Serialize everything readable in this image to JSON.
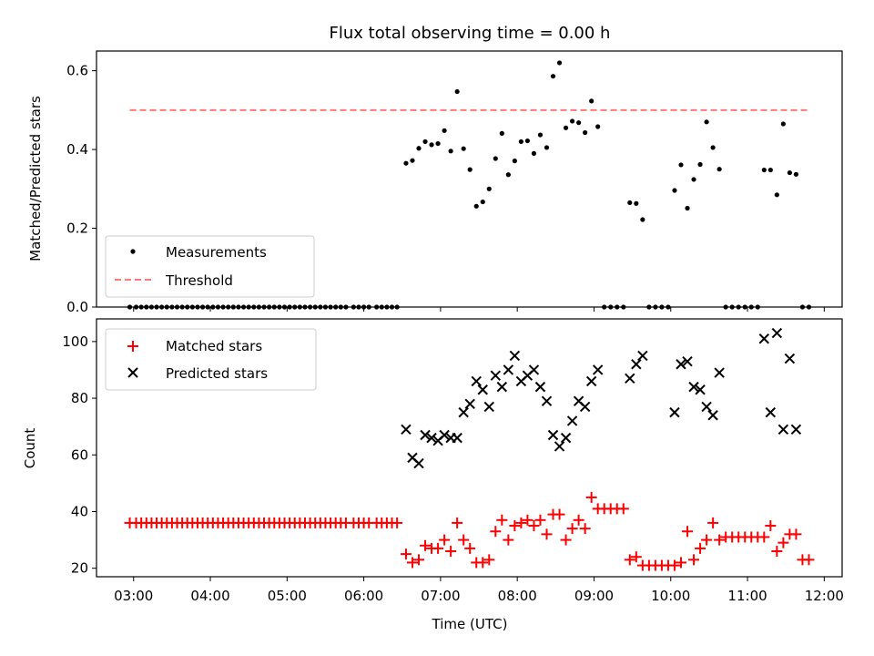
{
  "chart_data": [
    {
      "type": "scatter",
      "title": "Flux total observing time = 0.00 h",
      "ylabel": "Matched/Predicted stars",
      "xlim": [
        "02:31",
        "12:14"
      ],
      "ylim": [
        0,
        0.65
      ],
      "yticks": [
        0.0,
        0.2,
        0.4,
        0.6
      ],
      "ytick_labels": [
        "0.0",
        "0.2",
        "0.4",
        "0.6"
      ],
      "xticks": [
        "03:00",
        "04:00",
        "05:00",
        "06:00",
        "07:00",
        "08:00",
        "09:00",
        "10:00",
        "11:00",
        "12:00"
      ],
      "legend": {
        "position": "lower left",
        "entries": [
          "Measurements",
          "Threshold"
        ]
      },
      "grid": false,
      "series": [
        {
          "name": "Measurements",
          "marker": "dot",
          "color": "#000000",
          "x": [
            "02:57",
            "03:02",
            "03:06",
            "03:10",
            "03:14",
            "03:18",
            "03:22",
            "03:26",
            "03:30",
            "03:34",
            "03:38",
            "03:42",
            "03:46",
            "03:50",
            "03:54",
            "03:58",
            "04:02",
            "04:06",
            "04:10",
            "04:14",
            "04:18",
            "04:22",
            "04:26",
            "04:30",
            "04:34",
            "04:38",
            "04:42",
            "04:46",
            "04:50",
            "04:54",
            "04:58",
            "05:02",
            "05:06",
            "05:10",
            "05:14",
            "05:18",
            "05:22",
            "05:26",
            "05:30",
            "05:34",
            "05:38",
            "05:42",
            "05:46",
            "05:52",
            "05:56",
            "06:00",
            "06:04",
            "06:10",
            "06:14",
            "06:18",
            "06:22",
            "06:26",
            "06:33",
            "06:38",
            "06:43",
            "06:48",
            "06:53",
            "06:58",
            "07:03",
            "07:08",
            "07:13",
            "07:18",
            "07:23",
            "07:28",
            "07:33",
            "07:38",
            "07:43",
            "07:48",
            "07:53",
            "07:58",
            "08:03",
            "08:08",
            "08:13",
            "08:18",
            "08:23",
            "08:28",
            "08:33",
            "08:38",
            "08:43",
            "08:48",
            "08:53",
            "08:58",
            "09:03",
            "09:08",
            "09:13",
            "09:18",
            "09:23",
            "09:28",
            "09:33",
            "09:38",
            "09:43",
            "09:48",
            "09:53",
            "09:58",
            "10:03",
            "10:08",
            "10:13",
            "10:18",
            "10:23",
            "10:28",
            "10:33",
            "10:38",
            "10:43",
            "10:48",
            "10:53",
            "10:58",
            "11:03",
            "11:08",
            "11:13",
            "11:18",
            "11:23",
            "11:28",
            "11:33",
            "11:38",
            "11:43",
            "11:48"
          ],
          "y": [
            0,
            0,
            0,
            0,
            0,
            0,
            0,
            0,
            0,
            0,
            0,
            0,
            0,
            0,
            0,
            0,
            0,
            0,
            0,
            0,
            0,
            0,
            0,
            0,
            0,
            0,
            0,
            0,
            0,
            0,
            0,
            0,
            0,
            0,
            0,
            0,
            0,
            0,
            0,
            0,
            0,
            0,
            0,
            0,
            0,
            0,
            0,
            0,
            0,
            0,
            0,
            0,
            0.365,
            0.372,
            0.403,
            0.42,
            0.412,
            0.415,
            0.448,
            0.396,
            0.547,
            0.402,
            0.349,
            0.256,
            0.267,
            0.3,
            0.377,
            0.441,
            0.336,
            0.371,
            0.42,
            0.422,
            0.39,
            0.437,
            0.405,
            0.586,
            0.62,
            0.455,
            0.472,
            0.468,
            0.443,
            0.523,
            0.458,
            0,
            0,
            0,
            0,
            0.265,
            0.263,
            0.222,
            0,
            0,
            0,
            0,
            0.296,
            0.361,
            0.251,
            0.324,
            0.362,
            0.47,
            0.405,
            0.35,
            0,
            0,
            0,
            0,
            0,
            0,
            0.348,
            0.348,
            0.285,
            0.465,
            0.341,
            0.337,
            0,
            0
          ]
        },
        {
          "name": "Threshold",
          "style": "dashed",
          "color": "#ff7777",
          "x": [
            "02:57",
            "11:48"
          ],
          "y": [
            0.5,
            0.5
          ]
        }
      ]
    },
    {
      "type": "scatter",
      "xlabel": "Time (UTC)",
      "ylabel": "Count",
      "xlim": [
        "02:31",
        "12:14"
      ],
      "ylim": [
        17,
        108
      ],
      "yticks": [
        20,
        40,
        60,
        80,
        100
      ],
      "ytick_labels": [
        "20",
        "40",
        "60",
        "80",
        "100"
      ],
      "xticks": [
        "03:00",
        "04:00",
        "05:00",
        "06:00",
        "07:00",
        "08:00",
        "09:00",
        "10:00",
        "11:00",
        "12:00"
      ],
      "legend": {
        "position": "upper left",
        "entries": [
          "Matched stars",
          "Predicted stars"
        ]
      },
      "grid": false,
      "series": [
        {
          "name": "Matched stars",
          "marker": "plus",
          "color": "#ff0000",
          "x": [
            "02:57",
            "03:02",
            "03:06",
            "03:10",
            "03:14",
            "03:18",
            "03:22",
            "03:26",
            "03:30",
            "03:34",
            "03:38",
            "03:42",
            "03:46",
            "03:50",
            "03:54",
            "03:58",
            "04:02",
            "04:06",
            "04:10",
            "04:14",
            "04:18",
            "04:22",
            "04:26",
            "04:30",
            "04:34",
            "04:38",
            "04:42",
            "04:46",
            "04:50",
            "04:54",
            "04:58",
            "05:02",
            "05:06",
            "05:10",
            "05:14",
            "05:18",
            "05:22",
            "05:26",
            "05:30",
            "05:34",
            "05:38",
            "05:42",
            "05:46",
            "05:52",
            "05:56",
            "06:00",
            "06:04",
            "06:10",
            "06:14",
            "06:18",
            "06:22",
            "06:26",
            "06:33",
            "06:38",
            "06:43",
            "06:48",
            "06:53",
            "06:58",
            "07:03",
            "07:08",
            "07:13",
            "07:18",
            "07:23",
            "07:28",
            "07:33",
            "07:38",
            "07:43",
            "07:48",
            "07:53",
            "07:58",
            "08:03",
            "08:08",
            "08:13",
            "08:18",
            "08:23",
            "08:28",
            "08:33",
            "08:38",
            "08:43",
            "08:48",
            "08:53",
            "08:58",
            "09:03",
            "09:08",
            "09:13",
            "09:18",
            "09:23",
            "09:28",
            "09:33",
            "09:38",
            "09:43",
            "09:48",
            "09:53",
            "09:58",
            "10:03",
            "10:08",
            "10:13",
            "10:18",
            "10:23",
            "10:28",
            "10:33",
            "10:38",
            "10:43",
            "10:48",
            "10:53",
            "10:58",
            "11:03",
            "11:08",
            "11:13",
            "11:18",
            "11:23",
            "11:28",
            "11:33",
            "11:38",
            "11:43",
            "11:48"
          ],
          "y": [
            36,
            36,
            36,
            36,
            36,
            36,
            36,
            36,
            36,
            36,
            36,
            36,
            36,
            36,
            36,
            36,
            36,
            36,
            36,
            36,
            36,
            36,
            36,
            36,
            36,
            36,
            36,
            36,
            36,
            36,
            36,
            36,
            36,
            36,
            36,
            36,
            36,
            36,
            36,
            36,
            36,
            36,
            36,
            36,
            36,
            36,
            36,
            36,
            36,
            36,
            36,
            36,
            25,
            22,
            23,
            28,
            27,
            27,
            30,
            26,
            36,
            30,
            27,
            22,
            22,
            23,
            33,
            37,
            30,
            35,
            36,
            37,
            35,
            37,
            32,
            39,
            39,
            30,
            34,
            37,
            34,
            45,
            41,
            41,
            41,
            41,
            41,
            23,
            24,
            21,
            21,
            21,
            21,
            21,
            21,
            22,
            33,
            23,
            27,
            30,
            36,
            30,
            31,
            31,
            31,
            31,
            31,
            31,
            31,
            35,
            26,
            29,
            32,
            32,
            23,
            23
          ]
        },
        {
          "name": "Predicted stars",
          "marker": "x",
          "color": "#000000",
          "x": [
            "06:33",
            "06:38",
            "06:43",
            "06:48",
            "06:53",
            "06:58",
            "07:03",
            "07:08",
            "07:13",
            "07:18",
            "07:23",
            "07:28",
            "07:33",
            "07:38",
            "07:43",
            "07:48",
            "07:53",
            "07:58",
            "08:03",
            "08:08",
            "08:13",
            "08:18",
            "08:23",
            "08:28",
            "08:33",
            "08:38",
            "08:43",
            "08:48",
            "08:53",
            "08:58",
            "09:03",
            "09:28",
            "09:33",
            "09:38",
            "10:03",
            "10:08",
            "10:13",
            "10:18",
            "10:23",
            "10:28",
            "10:33",
            "10:38",
            "11:13",
            "11:18",
            "11:23",
            "11:28",
            "11:33",
            "11:38"
          ],
          "y": [
            69,
            59,
            57,
            67,
            66,
            65,
            67,
            66,
            66,
            75,
            78,
            86,
            83,
            77,
            88,
            84,
            90,
            95,
            86,
            88,
            90,
            84,
            79,
            67,
            63,
            66,
            72,
            79,
            77,
            86,
            90,
            87,
            92,
            95,
            75,
            92,
            93,
            84,
            83,
            77,
            74,
            89,
            101,
            75,
            103,
            69,
            94,
            69
          ]
        }
      ]
    }
  ]
}
